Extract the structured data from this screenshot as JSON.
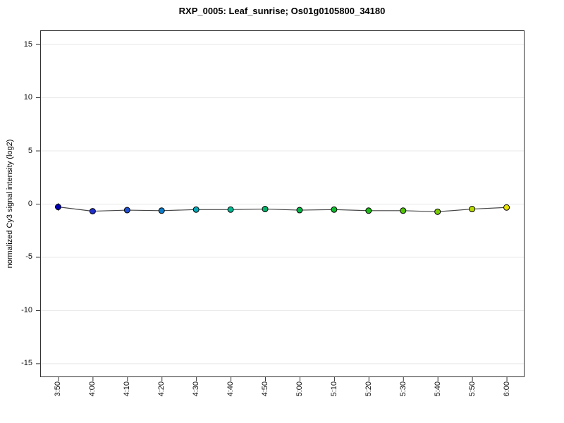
{
  "chart_data": {
    "type": "line",
    "title": "RXP_0005: Leaf_sunrise; Os01g0105800_34180",
    "xlabel": "",
    "ylabel": "normalized Cy3 signal intensity (log2)",
    "categories": [
      "3:50",
      "4:00",
      "4:10",
      "4:20",
      "4:30",
      "4:40",
      "4:50",
      "5:00",
      "5:10",
      "5:20",
      "5:30",
      "5:40",
      "5:50",
      "6:00"
    ],
    "values": [
      -0.3,
      -0.7,
      -0.6,
      -0.65,
      -0.55,
      -0.55,
      -0.5,
      -0.6,
      -0.55,
      -0.65,
      -0.65,
      -0.75,
      -0.5,
      -0.35
    ],
    "errors": [
      0.35,
      0.15,
      0.12,
      0.12,
      0.12,
      0.12,
      0.12,
      0.12,
      0.12,
      0.12,
      0.12,
      0.15,
      0.12,
      0.12
    ],
    "point_colors": [
      "#0000b3",
      "#1f2ecc",
      "#1f4fd1",
      "#0a7cc9",
      "#00a8b8",
      "#00b894",
      "#00b36b",
      "#00b546",
      "#0dba2e",
      "#1fbc17",
      "#4fc400",
      "#7acc00",
      "#b8d900",
      "#e8e300"
    ],
    "yticks": [
      15,
      10,
      5,
      0,
      -5,
      -10,
      -15
    ],
    "ylim": [
      -16.3,
      16.3
    ],
    "xlim": [
      0.48,
      14.52
    ],
    "grid": "horizontal",
    "legend": "none",
    "colors": {
      "background": "#ffffff",
      "plot_border": "#333333",
      "grid_line": "#e8e8e8",
      "tick": "#333333",
      "series_line": "#444444",
      "error_bar": "#000000",
      "point_outline": "#000000"
    }
  }
}
